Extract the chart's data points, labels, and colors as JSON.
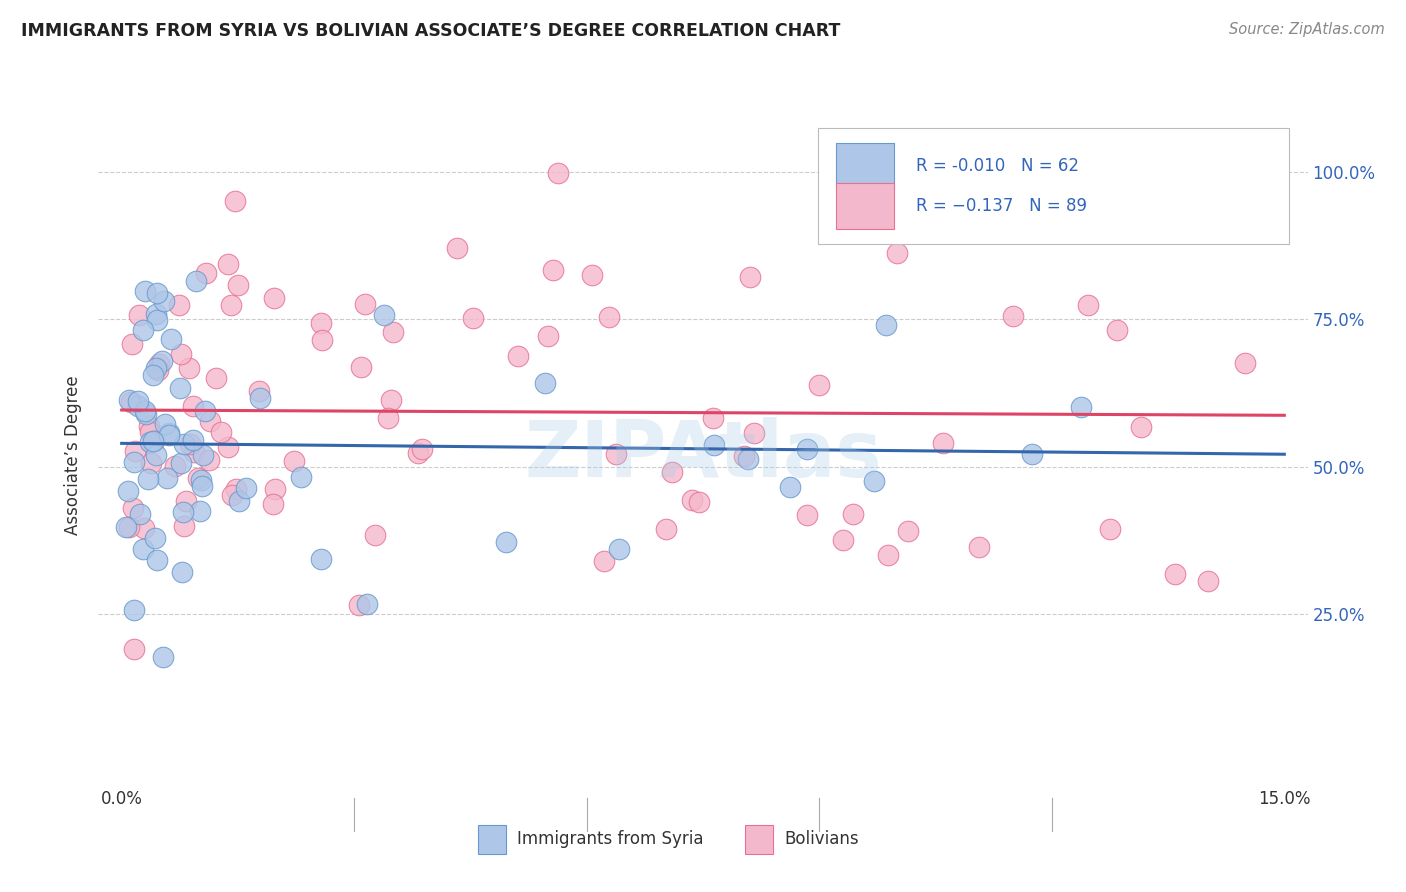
{
  "title": "IMMIGRANTS FROM SYRIA VS BOLIVIAN ASSOCIATE’S DEGREE CORRELATION CHART",
  "source": "Source: ZipAtlas.com",
  "ylabel": "Associate’s Degree",
  "syria_color": "#aec6e8",
  "syria_edge": "#6699cc",
  "bolivia_color": "#f4b8cc",
  "bolivia_edge": "#e87090",
  "trend_syria_color": "#3366aa",
  "trend_bolivia_color": "#dd4466",
  "watermark": "ZIPAtlas",
  "background_color": "#ffffff",
  "grid_color": "#cccccc",
  "R_syria": -0.01,
  "N_syria": 62,
  "R_bolivia": -0.137,
  "N_bolivia": 89,
  "legend_text_color": "#3366bb",
  "title_color": "#222222",
  "source_color": "#888888",
  "axis_label_color": "#333333",
  "right_tick_color": "#3366bb"
}
